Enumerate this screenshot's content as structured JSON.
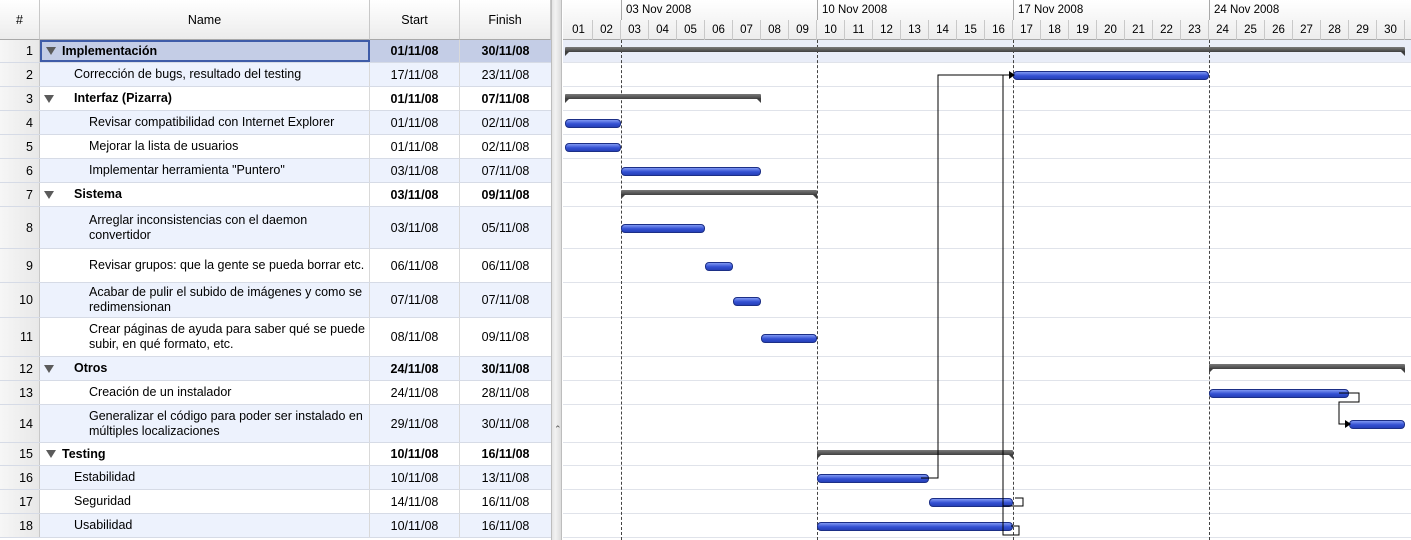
{
  "columns": {
    "num": "#",
    "name": "Name",
    "start": "Start",
    "finish": "Finish"
  },
  "tasks": [
    {
      "id": "1",
      "name": "Implementación",
      "start": "01/11/08",
      "finish": "30/11/08",
      "level": 0,
      "summary": true,
      "selected": true
    },
    {
      "id": "2",
      "name": "Corrección de bugs, resultado del testing",
      "start": "17/11/08",
      "finish": "23/11/08",
      "level": 1,
      "summary": false
    },
    {
      "id": "3",
      "name": "Interfaz (Pizarra)",
      "start": "01/11/08",
      "finish": "07/11/08",
      "level": 1,
      "summary": true
    },
    {
      "id": "4",
      "name": "Revisar compatibilidad con Internet Explorer",
      "start": "01/11/08",
      "finish": "02/11/08",
      "level": 2,
      "summary": false
    },
    {
      "id": "5",
      "name": "Mejorar la lista de usuarios",
      "start": "01/11/08",
      "finish": "02/11/08",
      "level": 2,
      "summary": false
    },
    {
      "id": "6",
      "name": "Implementar herramienta \"Puntero\"",
      "start": "03/11/08",
      "finish": "07/11/08",
      "level": 2,
      "summary": false
    },
    {
      "id": "7",
      "name": "Sistema",
      "start": "03/11/08",
      "finish": "09/11/08",
      "level": 1,
      "summary": true
    },
    {
      "id": "8",
      "name": "Arreglar inconsistencias con el daemon convertidor",
      "start": "03/11/08",
      "finish": "05/11/08",
      "level": 2,
      "summary": false
    },
    {
      "id": "9",
      "name": "Revisar grupos: que la gente se pueda borrar etc.",
      "start": "06/11/08",
      "finish": "06/11/08",
      "level": 2,
      "summary": false
    },
    {
      "id": "10",
      "name": "Acabar de pulir el subido de imágenes y como se redimensionan",
      "start": "07/11/08",
      "finish": "07/11/08",
      "level": 2,
      "summary": false
    },
    {
      "id": "11",
      "name": "Crear páginas de ayuda para saber qué se puede subir, en qué formato, etc.",
      "start": "08/11/08",
      "finish": "09/11/08",
      "level": 2,
      "summary": false
    },
    {
      "id": "12",
      "name": "Otros",
      "start": "24/11/08",
      "finish": "30/11/08",
      "level": 1,
      "summary": true
    },
    {
      "id": "13",
      "name": "Creación de un instalador",
      "start": "24/11/08",
      "finish": "28/11/08",
      "level": 2,
      "summary": false
    },
    {
      "id": "14",
      "name": "Generalizar el código para poder ser instalado en múltiples localizaciones",
      "start": "29/11/08",
      "finish": "30/11/08",
      "level": 2,
      "summary": false
    },
    {
      "id": "15",
      "name": "Testing",
      "start": "10/11/08",
      "finish": "16/11/08",
      "level": 0,
      "summary": true
    },
    {
      "id": "16",
      "name": "Estabilidad",
      "start": "10/11/08",
      "finish": "13/11/08",
      "level": 1,
      "summary": false
    },
    {
      "id": "17",
      "name": "Seguridad",
      "start": "14/11/08",
      "finish": "16/11/08",
      "level": 1,
      "summary": false
    },
    {
      "id": "18",
      "name": "Usabilidad",
      "start": "10/11/08",
      "finish": "16/11/08",
      "level": 1,
      "summary": false
    }
  ],
  "timeline": {
    "weeks": [
      "03 Nov 2008",
      "10 Nov 2008",
      "17 Nov 2008",
      "24 Nov 2008"
    ],
    "days": [
      "01",
      "02",
      "03",
      "04",
      "05",
      "06",
      "07",
      "08",
      "09",
      "10",
      "11",
      "12",
      "13",
      "14",
      "15",
      "16",
      "17",
      "18",
      "19",
      "20",
      "21",
      "22",
      "23",
      "24",
      "25",
      "26",
      "27",
      "28",
      "29",
      "30"
    ]
  },
  "colors": {
    "bar": "#3350d2",
    "summary": "#404040",
    "selection": "#c4cde6"
  }
}
